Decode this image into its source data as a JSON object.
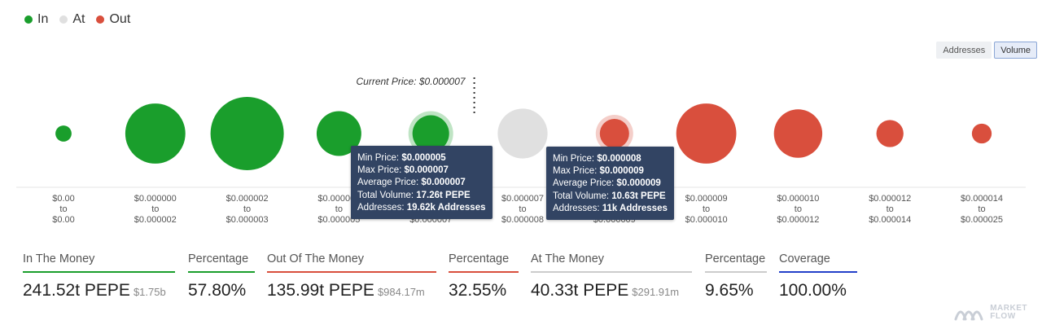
{
  "legend": [
    {
      "label": "In",
      "color": "#1a9e2c"
    },
    {
      "label": "At",
      "color": "#e0e0e0"
    },
    {
      "label": "Out",
      "color": "#d94f3d"
    }
  ],
  "toggle": {
    "addresses_label": "Addresses",
    "volume_label": "Volume",
    "active": "Volume"
  },
  "current_price_label": "Current Price: $0.000007",
  "chart_data": {
    "type": "scatter",
    "subtype": "bubble",
    "metric": "volume",
    "categories": [
      {
        "from": "$0.00",
        "to": "$0.00",
        "state": "In",
        "relative_size": 0.22
      },
      {
        "from": "$0.000000",
        "to": "$0.000002",
        "state": "In",
        "relative_size": 0.82
      },
      {
        "from": "$0.000002",
        "to": "$0.000003",
        "state": "In",
        "relative_size": 1.0
      },
      {
        "from": "$0.000003",
        "to": "$0.000005",
        "state": "In",
        "relative_size": 0.61
      },
      {
        "from": "$0.000005",
        "to": "$0.000007",
        "state": "In",
        "relative_size": 0.5,
        "highlighted": true
      },
      {
        "from": "$0.000007",
        "to": "$0.000008",
        "state": "At",
        "relative_size": 0.68
      },
      {
        "from": "$0.000008",
        "to": "$0.000009",
        "state": "Out",
        "relative_size": 0.4,
        "highlighted": true
      },
      {
        "from": "$0.000009",
        "to": "$0.000010",
        "state": "Out",
        "relative_size": 0.82
      },
      {
        "from": "$0.000010",
        "to": "$0.000012",
        "state": "Out",
        "relative_size": 0.66
      },
      {
        "from": "$0.000012",
        "to": "$0.000014",
        "state": "Out",
        "relative_size": 0.37
      },
      {
        "from": "$0.000014",
        "to": "$0.000025",
        "state": "Out",
        "relative_size": 0.27
      }
    ],
    "tick_to": "to",
    "colors": {
      "In": "#1a9e2c",
      "At": "#e0e0e0",
      "Out": "#d94f3d"
    }
  },
  "tooltips": [
    {
      "category_index": 4,
      "lines": [
        {
          "label": "Min Price: ",
          "value": "$0.000005"
        },
        {
          "label": "Max Price: ",
          "value": "$0.000007"
        },
        {
          "label": "Average Price: ",
          "value": "$0.000007"
        },
        {
          "label": "Total Volume: ",
          "value": "17.26t PEPE"
        },
        {
          "label": "Addresses: ",
          "value": "19.62k Addresses"
        }
      ]
    },
    {
      "category_index": 6,
      "lines": [
        {
          "label": "Min Price: ",
          "value": "$0.000008"
        },
        {
          "label": "Max Price: ",
          "value": "$0.000009"
        },
        {
          "label": "Average Price: ",
          "value": "$0.000009"
        },
        {
          "label": "Total Volume: ",
          "value": "10.63t PEPE"
        },
        {
          "label": "Addresses: ",
          "value": "11k Addresses"
        }
      ]
    }
  ],
  "stats": [
    {
      "label": "In The Money",
      "value": "241.52t PEPE",
      "sub": "$1.75b",
      "color": "#1a9e2c"
    },
    {
      "label": "Percentage",
      "value": "57.80%",
      "sub": "",
      "color": "#1a9e2c"
    },
    {
      "label": "Out Of The Money",
      "value": "135.99t PEPE",
      "sub": "$984.17m",
      "color": "#d94f3d"
    },
    {
      "label": "Percentage",
      "value": "32.55%",
      "sub": "",
      "color": "#d94f3d"
    },
    {
      "label": "At The Money",
      "value": "40.33t PEPE",
      "sub": "$291.91m",
      "color": "#cccccc"
    },
    {
      "label": "Percentage",
      "value": "9.65%",
      "sub": "",
      "color": "#cccccc"
    },
    {
      "label": "Coverage",
      "value": "100.00%",
      "sub": "",
      "color": "#2340c9"
    }
  ],
  "watermark": {
    "line1": "MARKET",
    "line2": "FLOW"
  }
}
